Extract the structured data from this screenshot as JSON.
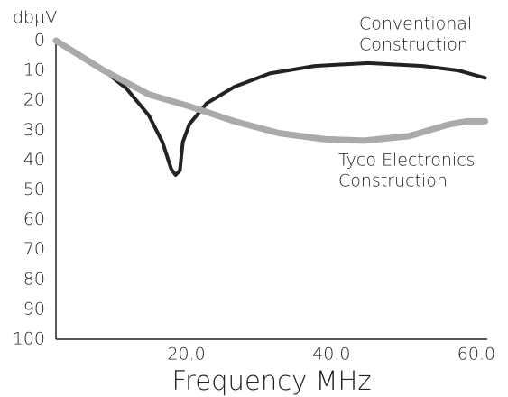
{
  "chart_data": {
    "type": "line",
    "y_axis_label": "dbμV",
    "x_axis_label": "Frequency MHz",
    "xlim": [
      2,
      61.5
    ],
    "xticks": [
      {
        "value": 20,
        "label": "20.0"
      },
      {
        "value": 40,
        "label": "40.0"
      },
      {
        "value": 60,
        "label": "60.0"
      }
    ],
    "ylim": [
      0,
      100
    ],
    "yticks": [
      0,
      10,
      20,
      30,
      40,
      50,
      60,
      70,
      80,
      90,
      100
    ],
    "y_inverted": true,
    "grid": false,
    "series": [
      {
        "name": [
          "Conventional",
          "Construction"
        ],
        "color": "#222222",
        "x": [
          2,
          5.5,
          8.6,
          11.7,
          14.8,
          16.7,
          17.9,
          18.5,
          19.1,
          19.5,
          20.4,
          22.8,
          26.6,
          31.5,
          37.7,
          45.1,
          52.6,
          57.5,
          61.2
        ],
        "values": [
          0,
          5,
          10,
          16,
          25,
          34,
          43,
          45,
          43.5,
          34,
          28,
          21,
          15.5,
          11,
          8.5,
          7.5,
          8.5,
          10,
          12.5
        ]
      },
      {
        "name": [
          "Tyco Electronics",
          "Construction"
        ],
        "color": "#aaaaaa",
        "x": [
          2,
          8.6,
          14.8,
          20.4,
          26.6,
          32.8,
          39,
          44.5,
          50.7,
          56.3,
          58.8,
          61.2
        ],
        "values": [
          0,
          10,
          18,
          22,
          27,
          31,
          33,
          33.5,
          32,
          28,
          27,
          27
        ]
      }
    ]
  }
}
